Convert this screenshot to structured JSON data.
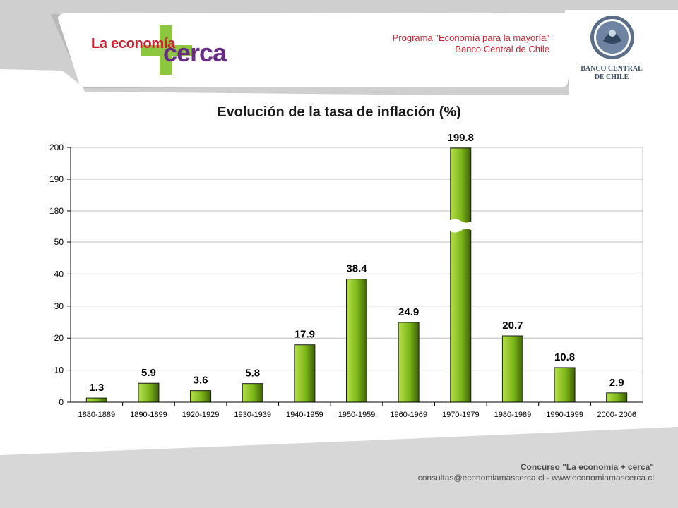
{
  "header": {
    "logo_line1": "La economía",
    "logo_line2": "cerca",
    "program_line1": "Programa \"Economía para la mayoría\"",
    "program_line2": "Banco Central de Chile",
    "bank_line1": "BANCO CENTRAL",
    "bank_line2": "DE CHILE"
  },
  "footer": {
    "line1": "Concurso \"La economía + cerca\"",
    "line2": "consultas@economiamascerca.cl  -  www.economiamascerca.cl"
  },
  "colors": {
    "bar_light": "#b4e04a",
    "bar_mid": "#7cb518",
    "bar_dark": "#3d5f08",
    "logo_red": "#c8202f",
    "logo_purple": "#6a2b86",
    "logo_green": "#8dc63f"
  },
  "chart_data": {
    "type": "bar",
    "title": "Evolución de la tasa de inflación (%)",
    "categories": [
      "1880-1889",
      "1890-1899",
      "1920-1929",
      "1930-1939",
      "1940-1959",
      "1950-1959",
      "1960-1969",
      "1970-1979",
      "1980-1989",
      "1990-1999",
      "2000- 2006"
    ],
    "values": [
      1.3,
      5.9,
      3.6,
      5.8,
      17.9,
      38.4,
      24.9,
      199.8,
      20.7,
      10.8,
      2.9
    ],
    "data_labels": [
      "1.3",
      "5.9",
      "3.6",
      "5.8",
      "17.9",
      "38.4",
      "24.9",
      "199.8",
      "20.7",
      "10.8",
      "2.9"
    ],
    "yticks": [
      "0",
      "10",
      "20",
      "30",
      "40",
      "50",
      "180",
      "190",
      "200"
    ],
    "axis_break": [
      50,
      180
    ],
    "ylim": [
      0,
      200
    ],
    "grid": true,
    "xlabel": "",
    "ylabel": ""
  }
}
